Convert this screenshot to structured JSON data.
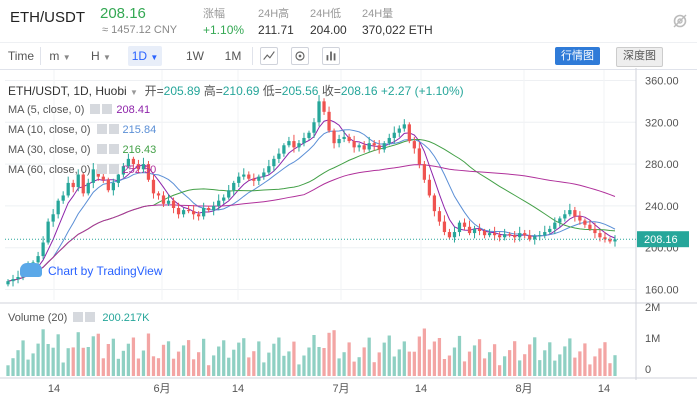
{
  "header": {
    "pair": "ETH/USDT",
    "price": "208.16",
    "cny": "≈ 1457.12 CNY",
    "stats": [
      {
        "label": "涨幅",
        "value": "+1.10%",
        "color": "#34a853"
      },
      {
        "label": "24H高",
        "value": "211.71",
        "color": "#333333"
      },
      {
        "label": "24H低",
        "value": "204.00",
        "color": "#333333"
      },
      {
        "label": "24H量",
        "value": "370,022 ETH",
        "color": "#333333"
      }
    ]
  },
  "toolbar": {
    "time": "Time",
    "minutes": "m",
    "hours": "H",
    "day": "1D",
    "week": "1W",
    "month": "1M",
    "view_kline": "行情图",
    "view_depth": "深度图"
  },
  "legend": {
    "symbol": "ETH/USDT, 1D, Huobi",
    "open_label": "开=",
    "open": "205.89",
    "high_label": "高=",
    "high": "210.69",
    "low_label": "低=",
    "low": "205.56",
    "close_label": "收=",
    "close": "208.16",
    "change": "+2.27 (+1.10%)",
    "ma": [
      {
        "label": "MA (5, close, 0)",
        "value": "208.41",
        "color": "#8e24aa"
      },
      {
        "label": "MA (10, close, 0)",
        "value": "215.84",
        "color": "#5b8fd6"
      },
      {
        "label": "MA (30, close, 0)",
        "value": "216.43",
        "color": "#43a047"
      },
      {
        "label": "MA (60, close, 0)",
        "value": "252.50",
        "color": "#b0319b"
      }
    ],
    "volume": "Volume (20)",
    "volume_value": "200.217K",
    "watermark": "Chart by TradingView"
  },
  "chart_data": {
    "type": "candlestick",
    "y_ticks": [
      160,
      200,
      240,
      280,
      320,
      360
    ],
    "last_price": 208.16,
    "x_ticks": [
      "14",
      "6月",
      "14",
      "7月",
      "14",
      "8月",
      "14"
    ],
    "volume_ticks": [
      "2M",
      "1M",
      "0"
    ],
    "colors": {
      "up": "#26a69a",
      "down": "#ef5350"
    },
    "closes": [
      168,
      170,
      172,
      176,
      182,
      186,
      192,
      205,
      225,
      232,
      245,
      250,
      262,
      258,
      270,
      252,
      262,
      275,
      268,
      265,
      255,
      262,
      270,
      278,
      285,
      280,
      275,
      280,
      265,
      252,
      250,
      242,
      245,
      238,
      232,
      236,
      235,
      232,
      230,
      238,
      236,
      240,
      245,
      248,
      255,
      262,
      268,
      270,
      266,
      264,
      268,
      272,
      278,
      285,
      290,
      298,
      302,
      296,
      300,
      305,
      310,
      320,
      340,
      330,
      312,
      300,
      304,
      306,
      302,
      296,
      298,
      294,
      300,
      298,
      294,
      300,
      305,
      310,
      314,
      318,
      302,
      295,
      280,
      265,
      250,
      235,
      225,
      215,
      210,
      215,
      224,
      220,
      214,
      218,
      216,
      212,
      214,
      212,
      210,
      213,
      212,
      210,
      214,
      212,
      208,
      211,
      212,
      215,
      218,
      224,
      228,
      232,
      236,
      230,
      226,
      222,
      218,
      214,
      210,
      208,
      206,
      208
    ]
  }
}
